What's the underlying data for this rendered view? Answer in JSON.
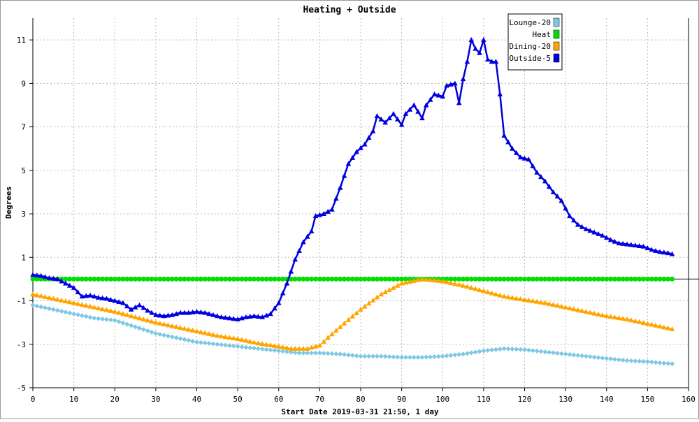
{
  "chart_data": {
    "type": "line",
    "title": "Heating + Outside",
    "xlabel": "Start Date 2019-03-31 21:50, 1 day",
    "ylabel": "Degrees",
    "xlim": [
      0,
      160
    ],
    "ylim": [
      -5,
      12
    ],
    "x_ticks": [
      0,
      10,
      20,
      30,
      40,
      50,
      60,
      70,
      80,
      90,
      100,
      110,
      120,
      130,
      140,
      150,
      160
    ],
    "y_ticks": [
      -5,
      -3,
      -1,
      1,
      3,
      5,
      7,
      9,
      11
    ],
    "grid": true,
    "legend_position": "top-right",
    "series": [
      {
        "name": "Lounge-20",
        "color": "#7ec8e3",
        "marker": "diamond",
        "points": [
          [
            0,
            -1.2
          ],
          [
            5,
            -1.4
          ],
          [
            10,
            -1.6
          ],
          [
            15,
            -1.8
          ],
          [
            20,
            -1.9
          ],
          [
            25,
            -2.2
          ],
          [
            30,
            -2.5
          ],
          [
            35,
            -2.7
          ],
          [
            40,
            -2.9
          ],
          [
            45,
            -3.0
          ],
          [
            50,
            -3.1
          ],
          [
            55,
            -3.2
          ],
          [
            60,
            -3.3
          ],
          [
            65,
            -3.4
          ],
          [
            70,
            -3.4
          ],
          [
            75,
            -3.45
          ],
          [
            80,
            -3.55
          ],
          [
            85,
            -3.55
          ],
          [
            90,
            -3.6
          ],
          [
            95,
            -3.6
          ],
          [
            100,
            -3.55
          ],
          [
            105,
            -3.45
          ],
          [
            110,
            -3.3
          ],
          [
            115,
            -3.2
          ],
          [
            120,
            -3.25
          ],
          [
            125,
            -3.35
          ],
          [
            130,
            -3.45
          ],
          [
            135,
            -3.55
          ],
          [
            140,
            -3.65
          ],
          [
            145,
            -3.75
          ],
          [
            150,
            -3.8
          ],
          [
            156,
            -3.9
          ]
        ]
      },
      {
        "name": "Heat",
        "color": "#00e000",
        "marker": "circle",
        "points": [
          [
            0,
            0
          ],
          [
            156,
            0
          ]
        ]
      },
      {
        "name": "Dining-20",
        "color": "#ffa500",
        "marker": "triangle",
        "points": [
          [
            0,
            -0.7
          ],
          [
            5,
            -0.9
          ],
          [
            10,
            -1.1
          ],
          [
            15,
            -1.3
          ],
          [
            20,
            -1.5
          ],
          [
            25,
            -1.75
          ],
          [
            30,
            -2.0
          ],
          [
            35,
            -2.2
          ],
          [
            40,
            -2.4
          ],
          [
            45,
            -2.6
          ],
          [
            50,
            -2.75
          ],
          [
            55,
            -2.95
          ],
          [
            60,
            -3.1
          ],
          [
            63,
            -3.2
          ],
          [
            67,
            -3.2
          ],
          [
            70,
            -3.05
          ],
          [
            72,
            -2.7
          ],
          [
            75,
            -2.2
          ],
          [
            80,
            -1.4
          ],
          [
            85,
            -0.7
          ],
          [
            90,
            -0.2
          ],
          [
            95,
            0
          ],
          [
            100,
            -0.1
          ],
          [
            105,
            -0.3
          ],
          [
            110,
            -0.55
          ],
          [
            115,
            -0.8
          ],
          [
            120,
            -0.95
          ],
          [
            125,
            -1.1
          ],
          [
            130,
            -1.3
          ],
          [
            135,
            -1.5
          ],
          [
            140,
            -1.7
          ],
          [
            145,
            -1.85
          ],
          [
            150,
            -2.05
          ],
          [
            156,
            -2.3
          ]
        ]
      },
      {
        "name": "Outside-5",
        "color": "#0000e0",
        "marker": "triangle",
        "points": [
          [
            0,
            0.2
          ],
          [
            2,
            0.15
          ],
          [
            4,
            0.05
          ],
          [
            6,
            0
          ],
          [
            8,
            -0.2
          ],
          [
            10,
            -0.4
          ],
          [
            12,
            -0.8
          ],
          [
            14,
            -0.75
          ],
          [
            16,
            -0.85
          ],
          [
            18,
            -0.9
          ],
          [
            20,
            -1.0
          ],
          [
            22,
            -1.1
          ],
          [
            24,
            -1.4
          ],
          [
            26,
            -1.2
          ],
          [
            28,
            -1.45
          ],
          [
            30,
            -1.65
          ],
          [
            32,
            -1.7
          ],
          [
            34,
            -1.65
          ],
          [
            36,
            -1.55
          ],
          [
            38,
            -1.55
          ],
          [
            40,
            -1.5
          ],
          [
            42,
            -1.55
          ],
          [
            44,
            -1.65
          ],
          [
            46,
            -1.75
          ],
          [
            48,
            -1.8
          ],
          [
            50,
            -1.85
          ],
          [
            52,
            -1.75
          ],
          [
            54,
            -1.7
          ],
          [
            56,
            -1.75
          ],
          [
            58,
            -1.6
          ],
          [
            60,
            -1.1
          ],
          [
            62,
            -0.2
          ],
          [
            64,
            0.9
          ],
          [
            66,
            1.7
          ],
          [
            68,
            2.2
          ],
          [
            69,
            2.9
          ],
          [
            71,
            3.0
          ],
          [
            73,
            3.2
          ],
          [
            75,
            4.2
          ],
          [
            77,
            5.3
          ],
          [
            79,
            5.85
          ],
          [
            81,
            6.2
          ],
          [
            83,
            6.8
          ],
          [
            84,
            7.5
          ],
          [
            86,
            7.2
          ],
          [
            88,
            7.6
          ],
          [
            90,
            7.1
          ],
          [
            91,
            7.6
          ],
          [
            93,
            8.0
          ],
          [
            95,
            7.4
          ],
          [
            96,
            8.0
          ],
          [
            98,
            8.5
          ],
          [
            100,
            8.4
          ],
          [
            101,
            8.9
          ],
          [
            103,
            9.0
          ],
          [
            104,
            8.1
          ],
          [
            105,
            9.2
          ],
          [
            106,
            10.0
          ],
          [
            107,
            11.0
          ],
          [
            108,
            10.6
          ],
          [
            109,
            10.4
          ],
          [
            110,
            11.0
          ],
          [
            111,
            10.1
          ],
          [
            112,
            10.0
          ],
          [
            113,
            10.0
          ],
          [
            114,
            8.5
          ],
          [
            115,
            6.6
          ],
          [
            117,
            6.0
          ],
          [
            119,
            5.6
          ],
          [
            121,
            5.5
          ],
          [
            123,
            4.9
          ],
          [
            125,
            4.5
          ],
          [
            127,
            4.0
          ],
          [
            129,
            3.6
          ],
          [
            131,
            2.9
          ],
          [
            133,
            2.5
          ],
          [
            135,
            2.3
          ],
          [
            137,
            2.15
          ],
          [
            139,
            2.0
          ],
          [
            141,
            1.8
          ],
          [
            143,
            1.65
          ],
          [
            145,
            1.6
          ],
          [
            147,
            1.55
          ],
          [
            149,
            1.5
          ],
          [
            151,
            1.35
          ],
          [
            153,
            1.25
          ],
          [
            155,
            1.2
          ],
          [
            156,
            1.15
          ]
        ]
      }
    ]
  }
}
